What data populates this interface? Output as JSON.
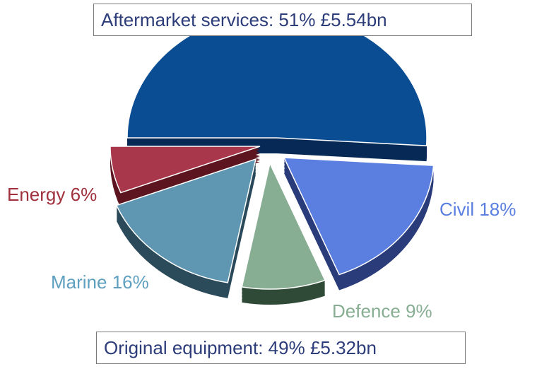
{
  "chart_data": {
    "type": "pie",
    "total_labels": {
      "top": "Aftermarket services: 51% £5.54bn",
      "bottom": "Original equipment: 49% £5.32bn"
    },
    "slices": [
      {
        "name": "Aftermarket services",
        "value": 51,
        "color": "#0b4d93",
        "label": ""
      },
      {
        "name": "Civil",
        "value": 18,
        "color": "#5b7fe0",
        "label": "Civil 18%"
      },
      {
        "name": "Defence",
        "value": 9,
        "color": "#87ad92",
        "label": "Defence 9%"
      },
      {
        "name": "Marine",
        "value": 16,
        "color": "#5f97b3",
        "label": "Marine 16%"
      },
      {
        "name": "Energy",
        "value": 6,
        "color": "#a8374b",
        "label": "Energy 6%"
      }
    ],
    "label_colors": {
      "energy": "#a0303c",
      "civil": "#5b7fe0",
      "marine": "#5fa0c0",
      "defence": "#87ad92"
    },
    "style": "3d-exploded"
  }
}
